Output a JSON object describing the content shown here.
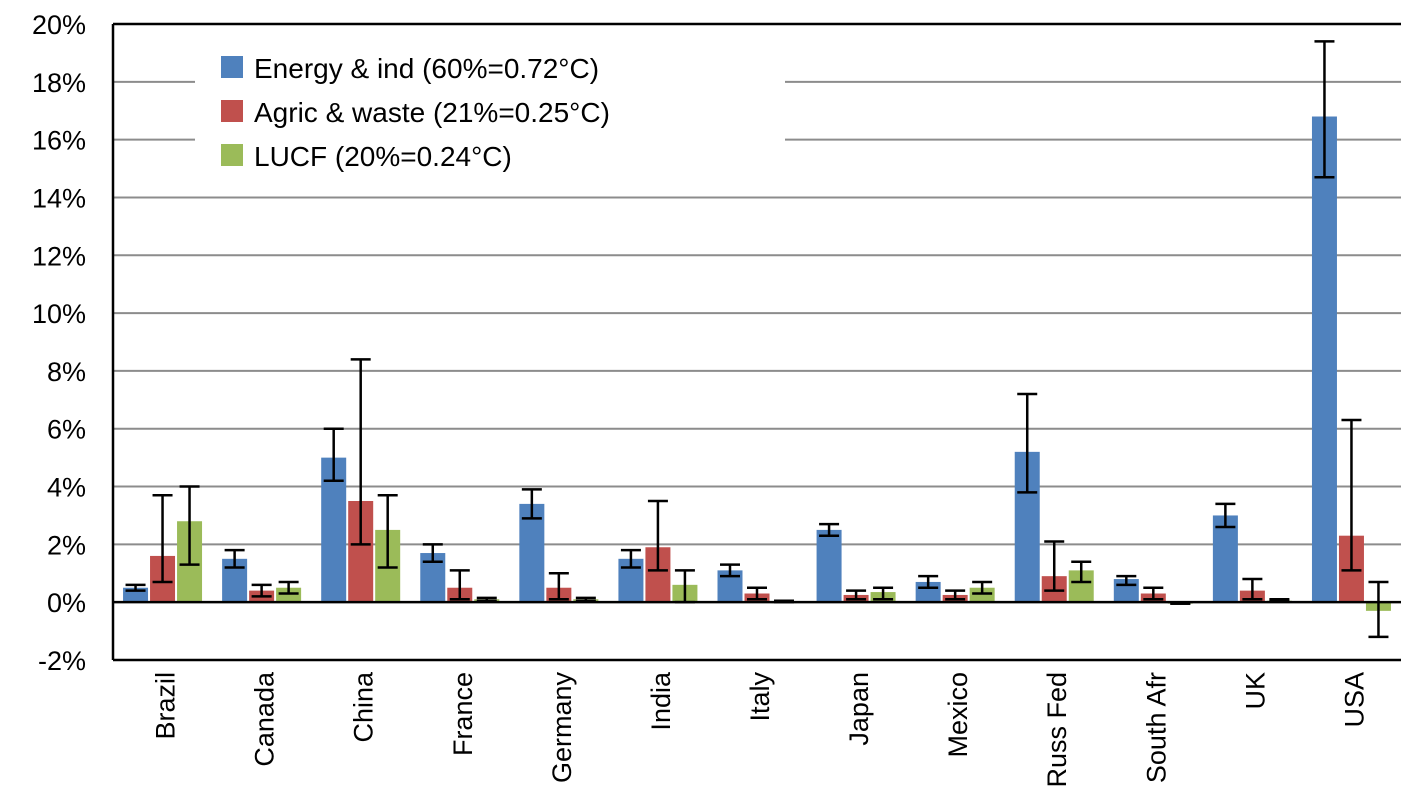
{
  "chart_data": {
    "type": "bar",
    "categories": [
      "Brazil",
      "Canada",
      "China",
      "France",
      "Germany",
      "India",
      "Italy",
      "Japan",
      "Mexico",
      "Russ Fed",
      "South Afr",
      "UK",
      "USA"
    ],
    "series": [
      {
        "name": "Energy & ind (60%=0.72°C)",
        "color": "#4f81bd",
        "values": [
          0.5,
          1.5,
          5.0,
          1.7,
          3.4,
          1.5,
          1.1,
          2.5,
          0.7,
          5.2,
          0.8,
          3.0,
          16.8
        ],
        "err_low": [
          0.4,
          1.2,
          4.2,
          1.4,
          2.9,
          1.2,
          0.9,
          2.3,
          0.5,
          3.8,
          0.6,
          2.6,
          14.7
        ],
        "err_high": [
          0.6,
          1.8,
          6.0,
          2.0,
          3.9,
          1.8,
          1.3,
          2.7,
          0.9,
          7.2,
          0.9,
          3.4,
          19.4
        ]
      },
      {
        "name": "Agric & waste (21%=0.25°C)",
        "color": "#c0504d",
        "values": [
          1.6,
          0.4,
          3.5,
          0.5,
          0.5,
          1.9,
          0.3,
          0.25,
          0.25,
          0.9,
          0.3,
          0.4,
          2.3
        ],
        "err_low": [
          0.7,
          0.2,
          2.0,
          0.1,
          0.1,
          1.1,
          0.1,
          0.1,
          0.1,
          0.4,
          0.1,
          0.1,
          1.1
        ],
        "err_high": [
          3.7,
          0.6,
          8.4,
          1.1,
          1.0,
          3.5,
          0.5,
          0.4,
          0.4,
          2.1,
          0.5,
          0.8,
          6.3
        ]
      },
      {
        "name": "LUCF (20%=0.24°C)",
        "color": "#9bbb59",
        "values": [
          2.8,
          0.5,
          2.5,
          0.1,
          0.1,
          0.6,
          0.0,
          0.35,
          0.5,
          1.1,
          -0.05,
          0.05,
          -0.3
        ],
        "err_low": [
          1.3,
          0.3,
          1.2,
          0.05,
          0.05,
          0.0,
          0.0,
          0.1,
          0.3,
          0.7,
          -0.05,
          0.05,
          -1.2
        ],
        "err_high": [
          4.0,
          0.7,
          3.7,
          0.15,
          0.15,
          1.1,
          0.05,
          0.5,
          0.7,
          1.4,
          -0.05,
          0.1,
          0.7
        ]
      }
    ],
    "y_ticks": [
      "-2%",
      "0%",
      "2%",
      "4%",
      "6%",
      "8%",
      "10%",
      "12%",
      "14%",
      "16%",
      "18%",
      "20%"
    ],
    "ylim": [
      -2,
      20
    ],
    "grid": true,
    "legend_position": "top-left"
  }
}
